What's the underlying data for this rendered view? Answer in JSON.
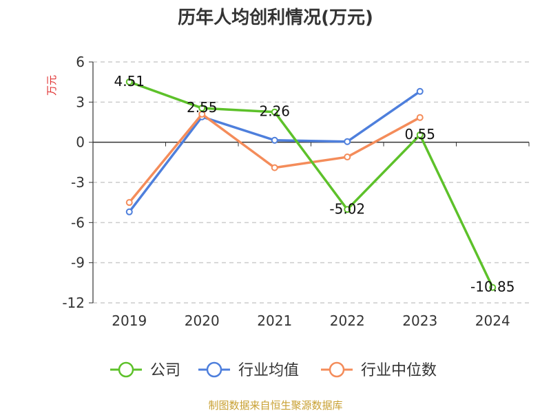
{
  "chart_data": {
    "type": "line",
    "title": "历年人均创利情况(万元)",
    "ylabel": "万元",
    "xlabel": "",
    "categories": [
      "2019",
      "2020",
      "2021",
      "2022",
      "2023",
      "2024"
    ],
    "ylim": [
      -12,
      6
    ],
    "yticks": [
      6,
      3,
      0,
      -3,
      -6,
      -9,
      -12
    ],
    "grid": true,
    "legend_position": "bottom",
    "series": [
      {
        "name": "公司",
        "color": "#5dc12a",
        "values": [
          4.51,
          2.55,
          2.26,
          -5.02,
          0.55,
          -10.85
        ],
        "labels": [
          "4.51",
          "2.55",
          "2.26",
          "-5.02",
          "0.55",
          "-10.85"
        ]
      },
      {
        "name": "行业均值",
        "color": "#4e7fdc",
        "values": [
          -5.2,
          1.9,
          0.15,
          0.05,
          3.8,
          null
        ]
      },
      {
        "name": "行业中位数",
        "color": "#f48c5a",
        "values": [
          -4.5,
          2.1,
          -1.9,
          -1.1,
          1.85,
          null
        ]
      }
    ]
  },
  "footer": {
    "source": "制图数据来自恒生聚源数据库"
  }
}
